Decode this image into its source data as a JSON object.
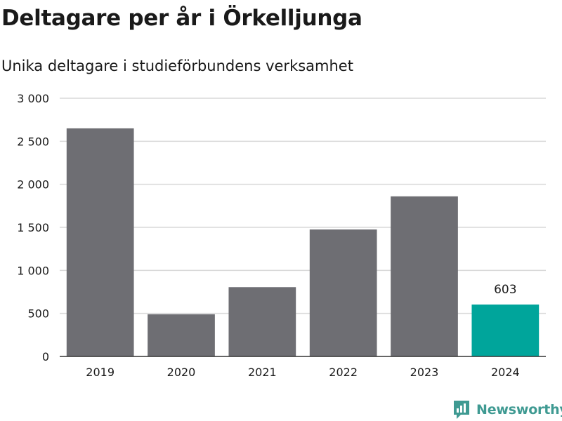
{
  "header": {
    "title": "Deltagare per år i Örkelljunga",
    "subtitle": "Unika deltagare i studieförbundens verksamhet"
  },
  "brand": {
    "name": "Newsworthy",
    "icon": "newsworthy-logo-icon",
    "color": "#3f9a92"
  },
  "chart_data": {
    "type": "bar",
    "categories": [
      "2019",
      "2020",
      "2021",
      "2022",
      "2023",
      "2024"
    ],
    "values": [
      2650,
      490,
      805,
      1475,
      1860,
      603
    ],
    "ylim": [
      0,
      3000
    ],
    "yticks": [
      0,
      500,
      1000,
      1500,
      2000,
      2500,
      3000
    ],
    "ytick_labels": [
      "0",
      "500",
      "1 000",
      "1 500",
      "2 000",
      "2 500",
      "3 000"
    ],
    "data_labels": {
      "5": "603"
    },
    "highlight_index": 5,
    "grid": true,
    "colors": {
      "bar": "#6e6e73",
      "highlight": "#00a59b",
      "grid": "#d9d9d9",
      "axis": "#333333"
    }
  }
}
